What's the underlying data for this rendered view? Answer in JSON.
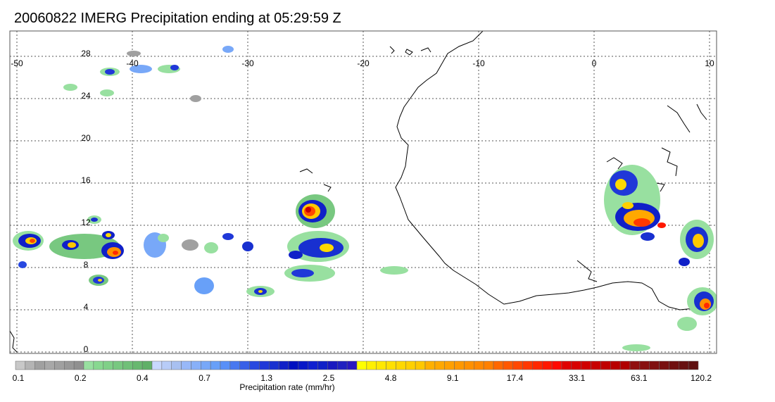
{
  "title": "20060822 IMERG Precipitation ending at 05:29:59 Z",
  "map": {
    "lon_labels": [
      "-50",
      "-40",
      "-30",
      "-20",
      "-10",
      "0",
      "10"
    ],
    "lat_labels": [
      "28",
      "24",
      "20",
      "16",
      "12",
      "8",
      "4",
      "0"
    ]
  },
  "colorbar": {
    "title": "Precipitation rate (mm/hr)",
    "tick_labels": [
      "0.1",
      "0.2",
      "0.4",
      "0.7",
      "1.3",
      "2.5",
      "4.8",
      "9.1",
      "17.4",
      "33.1",
      "63.1",
      "120.2"
    ],
    "colors": [
      "#c8c8c8",
      "#b4b4b4",
      "#a0a0a0",
      "#a8a8a8",
      "#a0a0a0",
      "#989898",
      "#909090",
      "#98e0a0",
      "#88d890",
      "#80d088",
      "#78c880",
      "#70c078",
      "#68b870",
      "#60b068",
      "#c8d8ff",
      "#b8ccf8",
      "#a8c0f0",
      "#98b8f8",
      "#88b0f8",
      "#78a8f8",
      "#68a0f8",
      "#5890f8",
      "#4878f0",
      "#3860e8",
      "#2848e0",
      "#2038d8",
      "#1830d0",
      "#1020c8",
      "#0010c0",
      "#0818c8",
      "#1020d0",
      "#1020c8",
      "#1818c0",
      "#2020c0",
      "#2818c0",
      "#ffff00",
      "#fff000",
      "#ffe800",
      "#ffe000",
      "#ffd800",
      "#ffd000",
      "#ffc800",
      "#ffb000",
      "#ffa800",
      "#ffa000",
      "#ff9800",
      "#ff9000",
      "#ff8800",
      "#ff8000",
      "#ff6800",
      "#ff5800",
      "#ff4800",
      "#ff3800",
      "#ff2800",
      "#ff1800",
      "#ff0800",
      "#e00000",
      "#d80000",
      "#d00000",
      "#c80000",
      "#c00000",
      "#b80000",
      "#b00000",
      "#901010",
      "#881010",
      "#801010",
      "#781010",
      "#701010",
      "#681010",
      "#601010"
    ]
  }
}
